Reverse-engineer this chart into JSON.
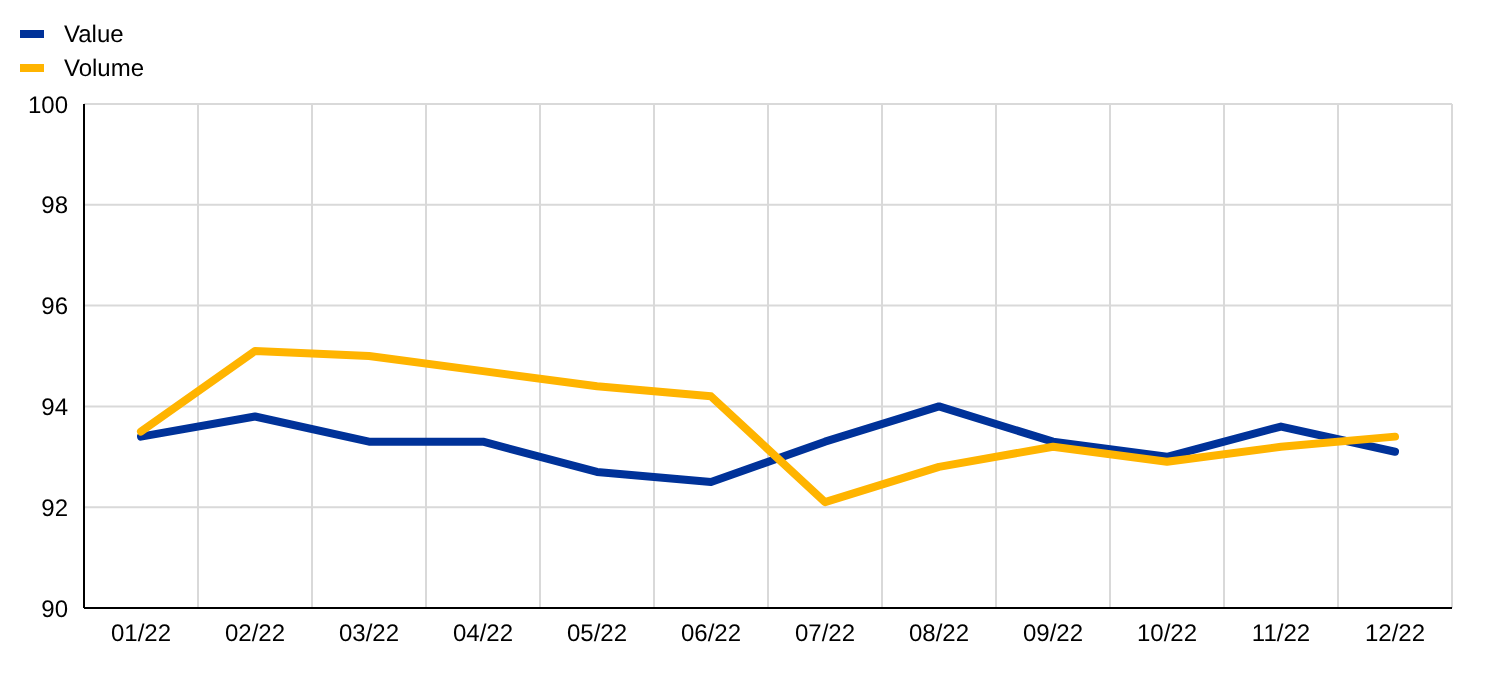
{
  "chart_data": {
    "type": "line",
    "categories": [
      "01/22",
      "02/22",
      "03/22",
      "04/22",
      "05/22",
      "06/22",
      "07/22",
      "08/22",
      "09/22",
      "10/22",
      "11/22",
      "12/22"
    ],
    "series": [
      {
        "name": "Value",
        "color": "#003299",
        "values": [
          93.4,
          93.8,
          93.3,
          93.3,
          92.7,
          92.5,
          93.3,
          94.0,
          93.3,
          93.0,
          93.6,
          93.1
        ]
      },
      {
        "name": "Volume",
        "color": "#ffb400",
        "values": [
          93.5,
          95.1,
          95.0,
          94.7,
          94.4,
          94.2,
          92.1,
          92.8,
          93.2,
          92.9,
          93.2,
          93.4
        ]
      }
    ],
    "ylim": [
      90,
      100
    ],
    "yticks": [
      90,
      92,
      94,
      96,
      98,
      100
    ],
    "grid": true,
    "legend": "top left",
    "marker": "none",
    "line_style": "solid"
  }
}
